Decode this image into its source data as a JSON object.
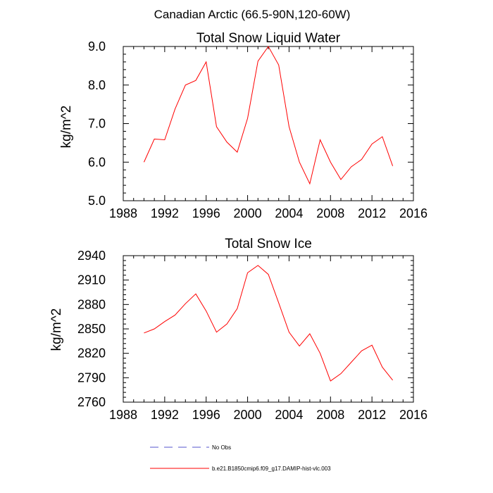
{
  "figure": {
    "suptitle": "Canadian Arctic (66.5-90N,120-60W)",
    "series_color": "#ff0000",
    "legend": [
      {
        "label": "No Obs",
        "color": "#5555cc",
        "style": "dashed"
      },
      {
        "label": "b.e21.B1850cmip6.f09_g17.DAMIP-hist-vlc.003",
        "color": "#ff0000",
        "style": "solid"
      }
    ]
  },
  "chart_data": [
    {
      "type": "line",
      "title": "Total Snow Liquid Water",
      "xlabel": "",
      "ylabel": "kg/m^2",
      "xlim": [
        1988,
        2016
      ],
      "ylim": [
        5.0,
        9.0
      ],
      "xticks": [
        1988,
        1992,
        1996,
        2000,
        2004,
        2008,
        2012,
        2016
      ],
      "xtick_labels": [
        "1988",
        "1992",
        "1996",
        "2000",
        "2004",
        "2008",
        "2012",
        "2016"
      ],
      "yticks": [
        5.0,
        6.0,
        7.0,
        8.0,
        9.0
      ],
      "ytick_labels": [
        "5.0",
        "6.0",
        "7.0",
        "8.0",
        "9.0"
      ],
      "series": [
        {
          "name": "b.e21.B1850cmip6.f09_g17.DAMIP-hist-vlc.003",
          "x": [
            1990,
            1991,
            1992,
            1993,
            1994,
            1995,
            1996,
            1997,
            1998,
            1999,
            2000,
            2001,
            2002,
            2003,
            2004,
            2005,
            2006,
            2007,
            2008,
            2009,
            2010,
            2011,
            2012,
            2013,
            2014
          ],
          "values": [
            6.0,
            6.6,
            6.58,
            7.38,
            8.0,
            8.12,
            8.6,
            6.92,
            6.52,
            6.26,
            7.14,
            8.62,
            9.0,
            8.52,
            6.92,
            6.0,
            5.44,
            6.58,
            6.0,
            5.55,
            5.88,
            6.07,
            6.47,
            6.66,
            5.9
          ]
        }
      ]
    },
    {
      "type": "line",
      "title": "Total Snow Ice",
      "xlabel": "",
      "ylabel": "kg/m^2",
      "xlim": [
        1988,
        2016
      ],
      "ylim": [
        2760,
        2940
      ],
      "xticks": [
        1988,
        1992,
        1996,
        2000,
        2004,
        2008,
        2012,
        2016
      ],
      "xtick_labels": [
        "1988",
        "1992",
        "1996",
        "2000",
        "2004",
        "2008",
        "2012",
        "2016"
      ],
      "yticks": [
        2760,
        2790,
        2820,
        2850,
        2880,
        2910,
        2940
      ],
      "ytick_labels": [
        "2760",
        "2790",
        "2820",
        "2850",
        "2880",
        "2910",
        "2940"
      ],
      "series": [
        {
          "name": "b.e21.B1850cmip6.f09_g17.DAMIP-hist-vlc.003",
          "x": [
            1990,
            1991,
            1992,
            1993,
            1994,
            1995,
            1996,
            1997,
            1998,
            1999,
            2000,
            2001,
            2002,
            2003,
            2004,
            2005,
            2006,
            2007,
            2008,
            2009,
            2010,
            2011,
            2012,
            2013,
            2014
          ],
          "values": [
            2845,
            2850,
            2859,
            2867,
            2881,
            2893,
            2872,
            2846,
            2856,
            2875,
            2919,
            2928,
            2917,
            2882,
            2846,
            2829,
            2844,
            2820,
            2786,
            2795,
            2809,
            2823,
            2830,
            2803,
            2787
          ]
        }
      ]
    }
  ]
}
